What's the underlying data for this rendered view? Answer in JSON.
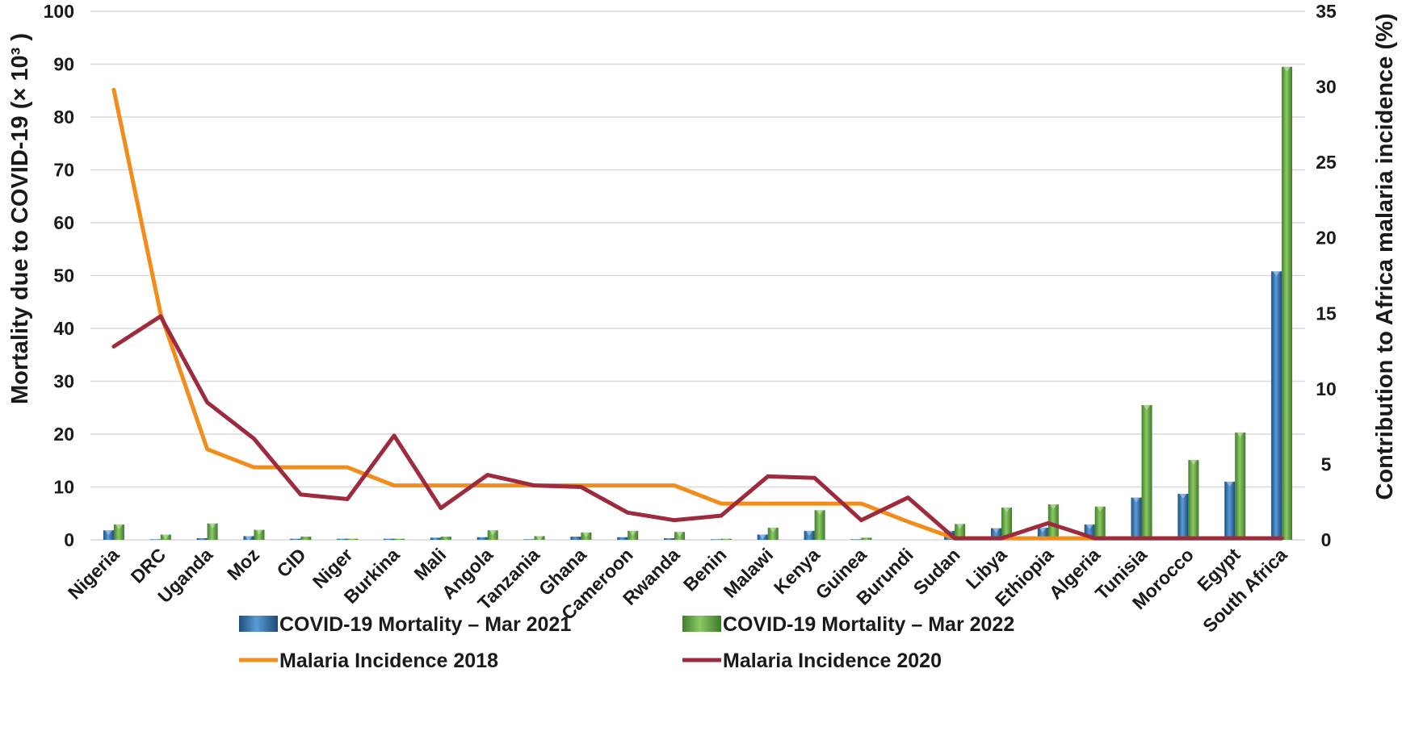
{
  "chart_data": {
    "type": "bar",
    "categories": [
      "Nigeria",
      "DRC",
      "Uganda",
      "Moz",
      "CID",
      "Niger",
      "Burkina",
      "Mali",
      "Angola",
      "Tanzania",
      "Ghana",
      "Cameroon",
      "Rwanda",
      "Benin",
      "Malawi",
      "Kenya",
      "Guinea",
      "Burundi",
      "Sudan",
      "Libya",
      "Ethiopia",
      "Algeria",
      "Tunisia",
      "Morocco",
      "Egypt",
      "South Africa"
    ],
    "ylabel": "Mortality due to COVID-19 (× 10³ )",
    "y2label": "Contribution to Africa malaria incidence (%)",
    "ylim": [
      0,
      100
    ],
    "y2lim": [
      0,
      35
    ],
    "yticks": [
      0,
      10,
      20,
      30,
      40,
      50,
      60,
      70,
      80,
      90,
      100
    ],
    "y2ticks": [
      0,
      5,
      10,
      15,
      20,
      25,
      30,
      35
    ],
    "grid": true,
    "legend_position": "bottom",
    "series": [
      {
        "name": "COVID-19 Mortality – Mar 2021",
        "type": "bar",
        "axis": "left",
        "color": "#2e75b6",
        "values": [
          1.8,
          0.1,
          0.3,
          0.7,
          0.2,
          0.2,
          0.2,
          0.4,
          0.5,
          0.1,
          0.6,
          0.5,
          0.3,
          0.1,
          1.0,
          1.7,
          0.1,
          0.0,
          1.7,
          2.2,
          2.3,
          2.9,
          8.0,
          8.7,
          11.0,
          50.8
        ]
      },
      {
        "name": "COVID-19 Mortality – Mar 2022",
        "type": "bar",
        "axis": "left",
        "color": "#70ad47",
        "values": [
          2.9,
          1.0,
          3.1,
          1.9,
          0.6,
          0.2,
          0.2,
          0.6,
          1.8,
          0.7,
          1.4,
          1.7,
          1.5,
          0.2,
          2.3,
          5.6,
          0.4,
          0.0,
          3.0,
          6.1,
          6.7,
          6.3,
          25.5,
          15.1,
          20.3,
          89.5
        ]
      },
      {
        "name": "Malaria Incidence 2018",
        "type": "line",
        "axis": "right",
        "color": "#f28c1a",
        "values": [
          29.8,
          15.0,
          6.0,
          4.8,
          4.8,
          4.8,
          3.6,
          3.6,
          3.6,
          3.6,
          3.6,
          3.6,
          3.6,
          2.4,
          2.4,
          2.4,
          2.4,
          1.2,
          0.1,
          0.1,
          0.1,
          0.1,
          0.1,
          0.1,
          0.1,
          0.1
        ]
      },
      {
        "name": "Malaria Incidence 2020",
        "type": "line",
        "axis": "right",
        "color": "#9e2a3d",
        "values": [
          12.8,
          14.8,
          9.1,
          6.7,
          3.0,
          2.7,
          6.9,
          2.1,
          4.3,
          3.6,
          3.5,
          1.8,
          1.3,
          1.6,
          4.2,
          4.1,
          1.3,
          2.8,
          0.1,
          0.1,
          1.1,
          0.1,
          0.1,
          0.1,
          0.1,
          0.1
        ]
      }
    ]
  }
}
